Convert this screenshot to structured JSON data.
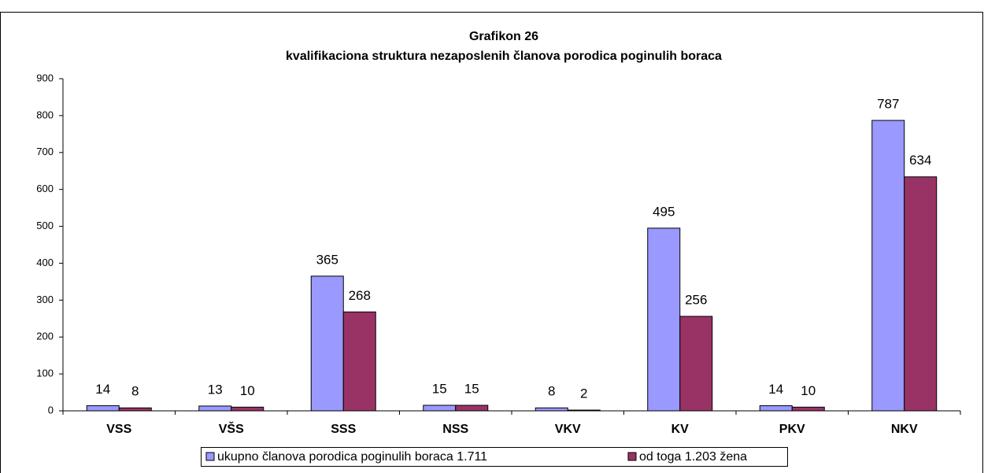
{
  "chart_data": {
    "type": "bar",
    "title": "Grafikon 26",
    "subtitle": "kvalifikaciona struktura nezaposlenih članova porodica poginulih boraca",
    "categories": [
      "VSS",
      "VŠS",
      "SSS",
      "NSS",
      "VKV",
      "KV",
      "PKV",
      "NKV"
    ],
    "series": [
      {
        "name": "ukupno članova porodica poginulih boraca 1.711",
        "color": "#9999ff",
        "values": [
          14,
          13,
          365,
          15,
          8,
          495,
          14,
          787
        ]
      },
      {
        "name": "od toga 1.203 žena",
        "color": "#993366",
        "values": [
          8,
          10,
          268,
          15,
          2,
          256,
          10,
          634
        ]
      }
    ],
    "ylim": [
      0,
      900
    ],
    "yticks": [
      0,
      100,
      200,
      300,
      400,
      500,
      600,
      700,
      800,
      900
    ],
    "grid": false,
    "legend": "bottom"
  }
}
